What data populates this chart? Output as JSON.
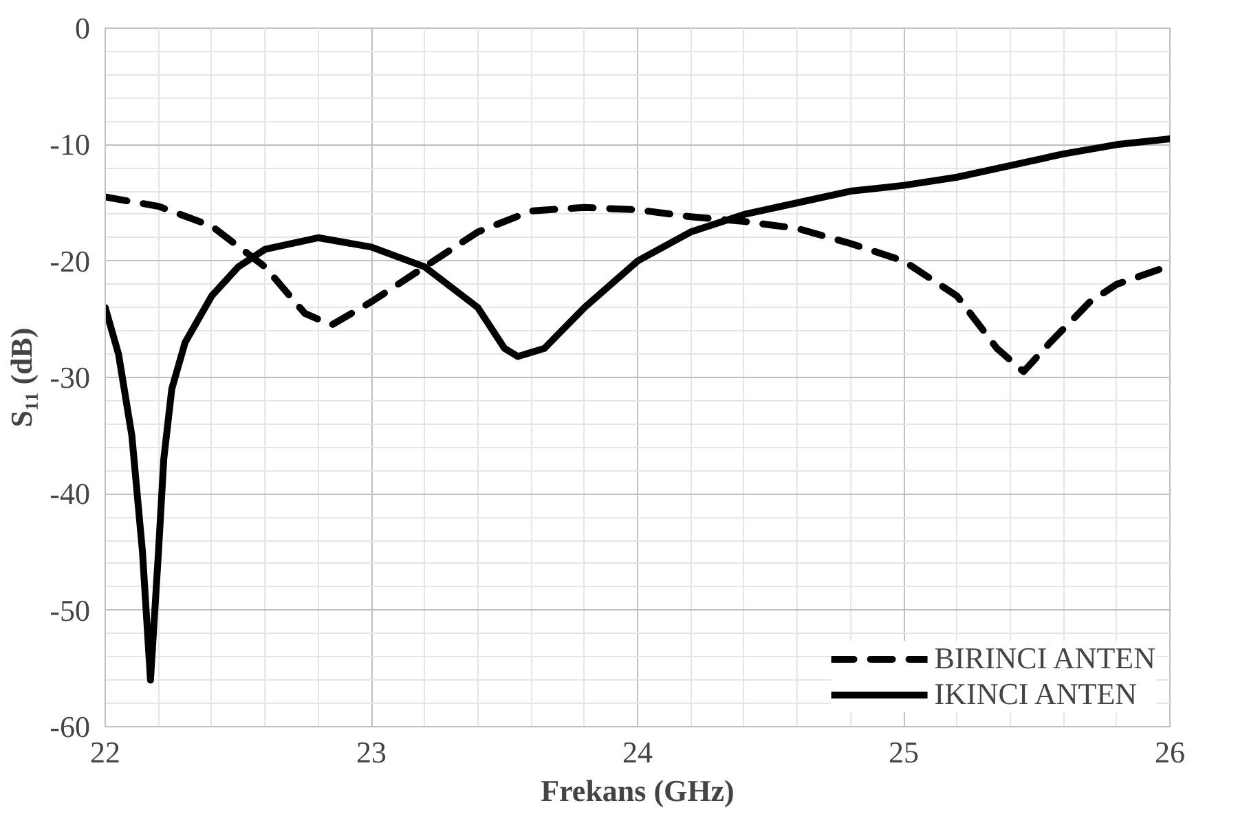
{
  "chart_data": {
    "type": "line",
    "xlabel": "Frekans (GHz)",
    "ylabel": "S₁₁ (dB)",
    "xlim": [
      22,
      26
    ],
    "ylim": [
      -60,
      0
    ],
    "xticks": [
      22,
      23,
      24,
      25,
      26
    ],
    "yticks": [
      -60,
      -50,
      -40,
      -30,
      -20,
      -10,
      0
    ],
    "grid": true,
    "legend": "bottom right",
    "series": [
      {
        "name": "BIRINCI ANTEN",
        "color": "#000000",
        "line_style": "dashed",
        "x": [
          22,
          22.2,
          22.4,
          22.6,
          22.75,
          22.85,
          23.0,
          23.2,
          23.4,
          23.6,
          23.8,
          24.0,
          24.2,
          24.4,
          24.6,
          24.8,
          25.0,
          25.2,
          25.35,
          25.45,
          25.55,
          25.7,
          25.8,
          26.0
        ],
        "values": [
          -14.5,
          -15.3,
          -17,
          -20.5,
          -24.5,
          -25.5,
          -23.5,
          -20.5,
          -17.5,
          -15.7,
          -15.4,
          -15.6,
          -16.2,
          -16.6,
          -17.2,
          -18.5,
          -20,
          -23,
          -27.5,
          -29.5,
          -27,
          -23.5,
          -22,
          -20.4
        ]
      },
      {
        "name": "IKINCI ANTEN",
        "color": "#000000",
        "line_style": "solid",
        "x": [
          22,
          22.05,
          22.1,
          22.14,
          22.17,
          22.2,
          22.22,
          22.25,
          22.3,
          22.4,
          22.5,
          22.6,
          22.8,
          23.0,
          23.2,
          23.4,
          23.5,
          23.55,
          23.65,
          23.8,
          24.0,
          24.2,
          24.4,
          24.6,
          24.8,
          25.0,
          25.2,
          25.4,
          25.6,
          25.8,
          26.0
        ],
        "values": [
          -24,
          -28,
          -35,
          -45,
          -56,
          -45,
          -37,
          -31,
          -27,
          -23,
          -20.5,
          -19,
          -18,
          -18.8,
          -20.5,
          -24,
          -27.5,
          -28.2,
          -27.5,
          -24,
          -20,
          -17.5,
          -16,
          -15,
          -14,
          -13.5,
          -12.8,
          -11.8,
          -10.8,
          -10,
          -9.5
        ]
      }
    ]
  }
}
